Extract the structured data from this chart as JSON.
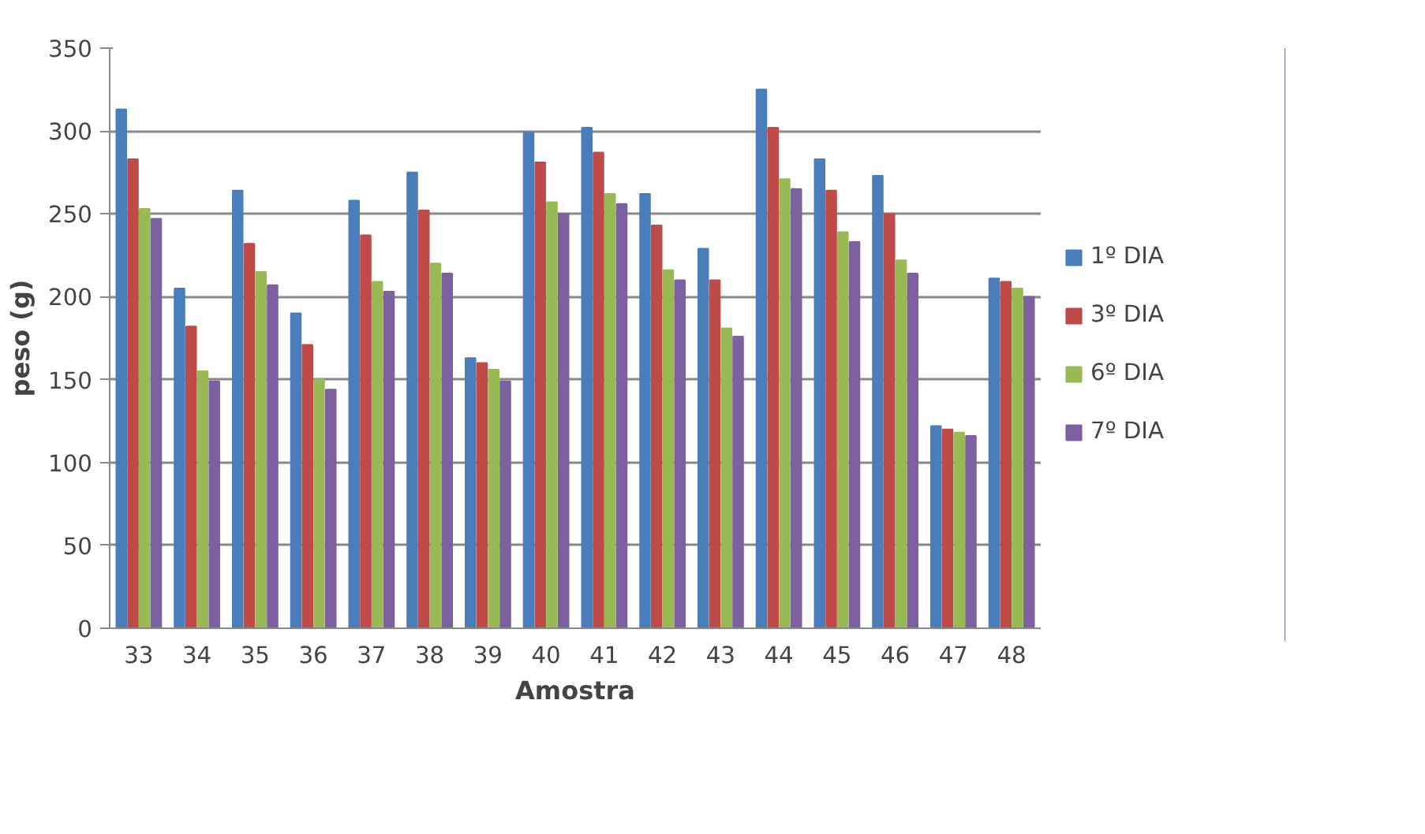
{
  "chart_data": {
    "type": "bar",
    "xlabel": "Amostra",
    "ylabel": "peso (g)",
    "categories": [
      "33",
      "34",
      "35",
      "36",
      "37",
      "38",
      "39",
      "40",
      "41",
      "42",
      "43",
      "44",
      "45",
      "46",
      "47",
      "48"
    ],
    "series": [
      {
        "name": "1º DIA",
        "color": "#4a7ebb",
        "values": [
          313,
          205,
          264,
          190,
          258,
          275,
          163,
          299,
          302,
          262,
          229,
          325,
          283,
          273,
          122,
          211
        ]
      },
      {
        "name": "3º DIA",
        "color": "#be4b48",
        "values": [
          283,
          182,
          232,
          171,
          237,
          252,
          160,
          281,
          287,
          243,
          210,
          302,
          264,
          250,
          120,
          209
        ]
      },
      {
        "name": "6º DIA",
        "color": "#98b954",
        "values": [
          253,
          155,
          215,
          150,
          209,
          220,
          156,
          257,
          262,
          216,
          181,
          271,
          239,
          222,
          118,
          205
        ]
      },
      {
        "name": "7º DIA",
        "color": "#7d60a0",
        "values": [
          247,
          149,
          207,
          144,
          203,
          214,
          149,
          250,
          256,
          210,
          176,
          265,
          233,
          214,
          116,
          200
        ]
      }
    ],
    "ylim": [
      0,
      350
    ],
    "yticks": [
      0,
      50,
      100,
      150,
      200,
      250,
      300,
      350
    ],
    "grid": "y",
    "legend": "right"
  }
}
